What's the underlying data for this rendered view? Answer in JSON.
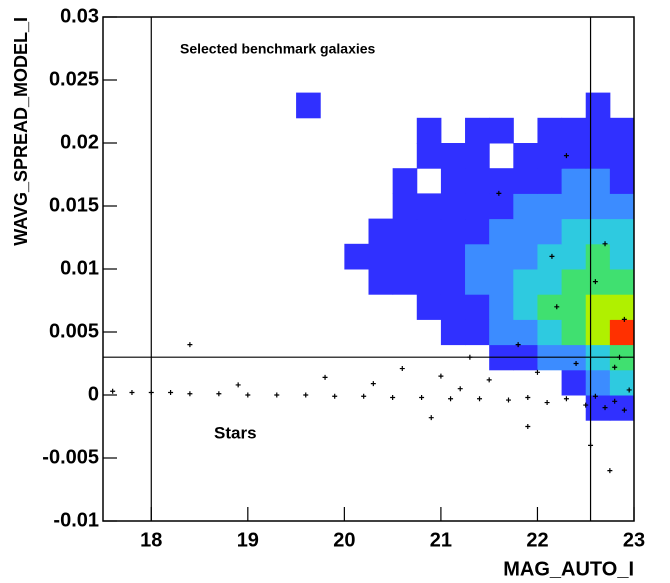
{
  "chart_data": {
    "type": "heatmap",
    "xlabel": "MAG_AUTO_I",
    "ylabel": "WAVG_SPREAD_MODEL_I",
    "annotations": [
      "Selected benchmark galaxies",
      "Stars"
    ],
    "xlim": [
      17.5,
      23
    ],
    "ylim": [
      -0.01,
      0.03
    ],
    "xticks": [
      18,
      19,
      20,
      21,
      22,
      23
    ],
    "yticks": [
      -0.01,
      -0.005,
      0,
      0.005,
      0.01,
      0.015,
      0.02,
      0.025,
      0.03
    ],
    "vlines": [
      18,
      22.55
    ],
    "hlines": [
      0.003
    ],
    "colors": [
      "#3030ff",
      "#3c8cff",
      "#2ecae0",
      "#40e070",
      "#b0f000",
      "#ff3000"
    ],
    "x_bins": [
      19.5,
      19.75,
      20,
      20.25,
      20.5,
      20.75,
      21,
      21.25,
      21.5,
      21.75,
      22,
      22.25,
      22.5,
      22.75,
      23
    ],
    "y_bins": [
      -0.002,
      0,
      0.002,
      0.004,
      0.006,
      0.008,
      0.01,
      0.012,
      0.014,
      0.016,
      0.018,
      0.02,
      0.022,
      0.024
    ],
    "z": [
      [
        0,
        0,
        0,
        0,
        0,
        0,
        0,
        0,
        0,
        0,
        0,
        0,
        1,
        1
      ],
      [
        0,
        0,
        0,
        0,
        0,
        0,
        0,
        0,
        0,
        0,
        0,
        1,
        2,
        3
      ],
      [
        0,
        0,
        0,
        0,
        0,
        0,
        0,
        0,
        1,
        1,
        2,
        2,
        3,
        4
      ],
      [
        0,
        0,
        0,
        0,
        0,
        0,
        1,
        1,
        2,
        2,
        3,
        4,
        5,
        6
      ],
      [
        0,
        0,
        0,
        0,
        0,
        1,
        1,
        1,
        2,
        3,
        4,
        4,
        5,
        5
      ],
      [
        0,
        0,
        0,
        1,
        1,
        1,
        1,
        2,
        2,
        3,
        3,
        4,
        4,
        4
      ],
      [
        0,
        0,
        1,
        1,
        1,
        1,
        1,
        2,
        2,
        2,
        3,
        3,
        4,
        3
      ],
      [
        0,
        0,
        0,
        1,
        1,
        1,
        1,
        1,
        2,
        2,
        2,
        3,
        3,
        3
      ],
      [
        0,
        0,
        0,
        0,
        1,
        1,
        1,
        1,
        1,
        2,
        2,
        2,
        2,
        2
      ],
      [
        0,
        0,
        0,
        0,
        1,
        0,
        1,
        1,
        1,
        1,
        1,
        2,
        2,
        1
      ],
      [
        0,
        0,
        0,
        0,
        0,
        1,
        1,
        1,
        0,
        1,
        1,
        1,
        1,
        1
      ],
      [
        0,
        0,
        0,
        0,
        0,
        1,
        0,
        1,
        1,
        0,
        1,
        1,
        1,
        1
      ],
      [
        1,
        0,
        0,
        0,
        0,
        0,
        0,
        0,
        0,
        0,
        0,
        0,
        1,
        0
      ]
    ],
    "points": {
      "color": "#000000",
      "x": [
        17.6,
        17.8,
        18.0,
        18.2,
        18.4,
        18.7,
        19.0,
        19.3,
        19.6,
        19.9,
        20.2,
        20.5,
        20.8,
        21.1,
        21.4,
        21.7,
        21.9,
        22.1,
        22.3,
        22.5,
        22.6,
        22.7,
        22.8,
        22.9,
        22.95,
        21.5,
        22.0,
        22.4,
        22.8,
        20.3,
        21.0,
        21.8,
        22.2,
        22.6,
        18.9,
        19.8,
        20.6,
        21.3,
        22.7,
        22.9,
        21.6,
        22.3,
        22.85,
        18.4,
        20.9,
        21.9,
        22.55,
        22.75,
        22.15,
        21.2
      ],
      "y": [
        0.0003,
        0.0002,
        0.0002,
        0.0002,
        0.0001,
        0.0001,
        0.0,
        0.0,
        0.0,
        -0.0001,
        -0.0001,
        -0.0002,
        -0.0002,
        -0.0003,
        -0.0003,
        -0.0004,
        -0.0002,
        -0.0006,
        -0.0003,
        -0.0008,
        -0.0001,
        -0.001,
        -0.0005,
        -0.0012,
        0.0004,
        0.0012,
        0.0018,
        0.0025,
        0.0022,
        0.0009,
        0.0015,
        0.004,
        0.007,
        0.009,
        0.0008,
        0.0014,
        0.0021,
        0.003,
        0.012,
        0.006,
        0.016,
        0.019,
        0.003,
        0.004,
        -0.0018,
        -0.0025,
        -0.004,
        -0.006,
        0.011,
        0.0005
      ]
    }
  }
}
